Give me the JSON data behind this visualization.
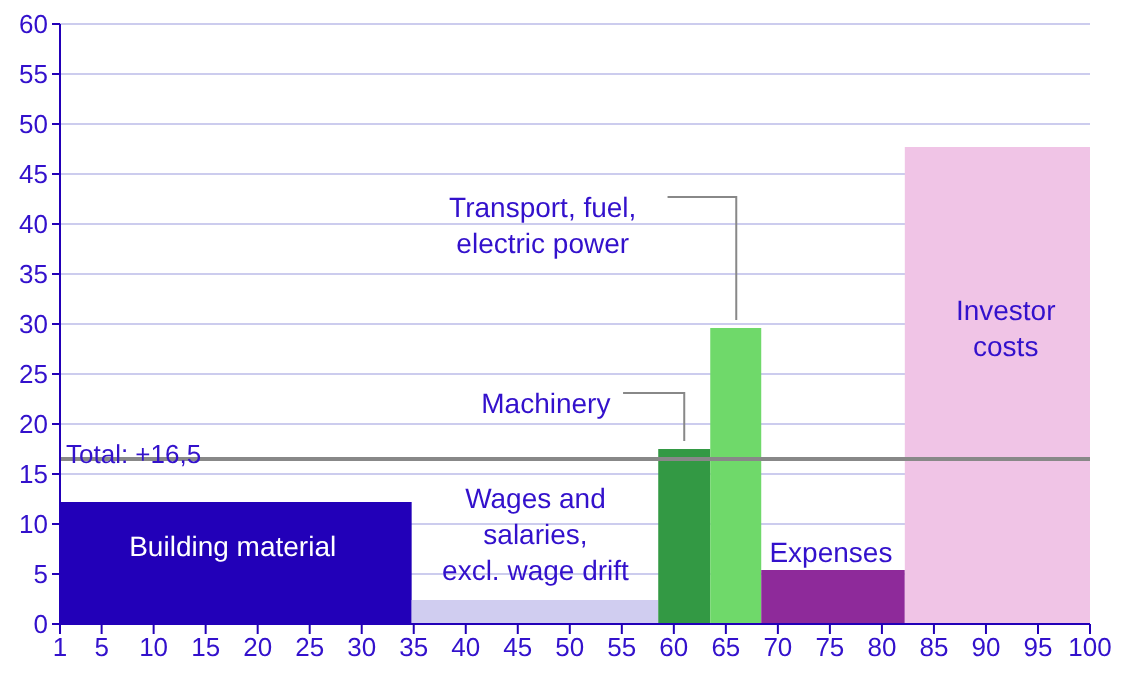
{
  "chart_data": {
    "type": "histogram",
    "bins": [
      1,
      34.8,
      58.5,
      63.5,
      68.4,
      82.2,
      100
    ],
    "values": [
      12.2,
      2.4,
      17.5,
      29.6,
      5.4,
      47.7
    ],
    "colors": [
      "#2200b8",
      "#d0cdf0",
      "#339944",
      "#6fd96a",
      "#8e2a9a",
      "#f0c4e6"
    ],
    "xlim": [
      1,
      100
    ],
    "xticks": [
      1,
      5,
      10,
      15,
      20,
      25,
      30,
      35,
      40,
      45,
      50,
      55,
      60,
      65,
      70,
      75,
      80,
      85,
      90,
      95,
      100
    ],
    "ylim": [
      0,
      60
    ],
    "yticks": [
      0,
      5,
      10,
      15,
      20,
      25,
      30,
      35,
      40,
      45,
      50,
      55,
      60
    ],
    "grid": "y",
    "ref_lines": [
      {
        "axis": "y",
        "value": 16.5,
        "label": "Total: +16,5",
        "color": "#888888"
      }
    ],
    "annotations": [
      "Building material",
      "Wages and\nsalaries,\nexcl. wage drift",
      {
        "text": "Machinery",
        "x": 61,
        "y": 17.5
      },
      {
        "text": "Transport, fuel,\nelectric power",
        "x": 66,
        "y": 29.6
      },
      "Expenses",
      "Investor\ncosts"
    ]
  }
}
